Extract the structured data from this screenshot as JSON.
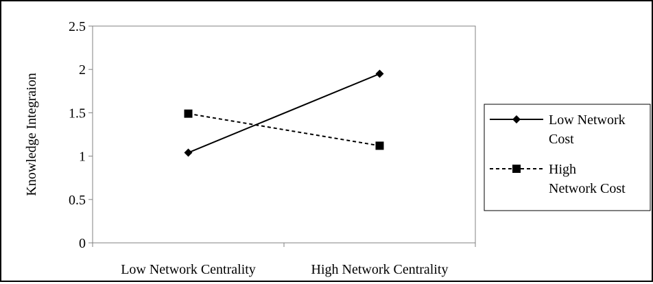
{
  "chart_data": {
    "type": "line",
    "title": "",
    "xlabel": "",
    "ylabel": "Knowledge Integraion",
    "categories": [
      "Low Network Centrality",
      "High Network Centrality"
    ],
    "ylim": [
      0,
      2.5
    ],
    "yticks": [
      "0",
      "0.5",
      "1",
      "1.5",
      "2",
      "2.5"
    ],
    "grid": false,
    "legend_position": "right",
    "series": [
      {
        "name_lines": [
          "Low Network",
          "Cost"
        ],
        "values": [
          1.04,
          1.95
        ],
        "marker": "diamond",
        "line_style": "solid",
        "color": "#000000"
      },
      {
        "name_lines": [
          "High",
          "Network Cost"
        ],
        "values": [
          1.49,
          1.12
        ],
        "marker": "square",
        "line_style": "dashed",
        "color": "#000000"
      }
    ]
  }
}
